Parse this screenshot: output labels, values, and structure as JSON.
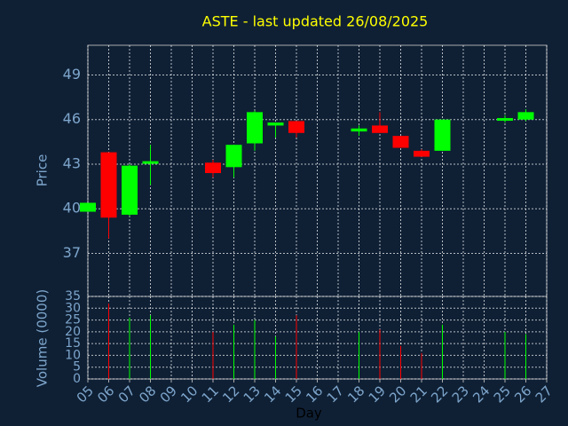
{
  "chart_data": [
    {
      "type": "candlestick",
      "title": "ASTE - last updated 26/08/2025",
      "ylabel": "Price",
      "x": [
        5,
        6,
        7,
        8,
        11,
        12,
        13,
        14,
        15,
        18,
        19,
        20,
        21,
        22,
        25,
        26
      ],
      "open": [
        39.8,
        43.8,
        39.6,
        43.1,
        43.1,
        42.8,
        44.4,
        45.6,
        45.9,
        45.2,
        45.6,
        44.9,
        43.9,
        43.9,
        46.0,
        46.0
      ],
      "high": [
        40.4,
        43.8,
        43.0,
        44.3,
        43.3,
        44.3,
        46.6,
        45.8,
        45.9,
        45.6,
        46.5,
        44.9,
        44.0,
        46.0,
        46.3,
        46.7
      ],
      "low": [
        39.8,
        38.0,
        39.5,
        41.6,
        42.1,
        42.1,
        43.9,
        44.8,
        44.8,
        44.9,
        45.1,
        44.1,
        43.5,
        43.9,
        45.8,
        45.9
      ],
      "close": [
        40.4,
        39.4,
        42.9,
        43.2,
        42.4,
        44.3,
        46.5,
        45.8,
        45.1,
        45.4,
        45.1,
        44.1,
        43.5,
        46.0,
        46.1,
        46.5
      ],
      "up_color": "#00ff00",
      "down_color": "#ff0000",
      "ylim": [
        34.1,
        51
      ],
      "yticks": [
        37,
        40,
        43,
        46,
        49
      ],
      "xlim": [
        5,
        27
      ],
      "grid": true
    },
    {
      "type": "bar",
      "ylabel": "Volume (0000)",
      "xlabel": "Day",
      "x": [
        5,
        6,
        7,
        8,
        11,
        12,
        13,
        14,
        15,
        18,
        19,
        20,
        21,
        22,
        25,
        26
      ],
      "values": [
        0,
        32,
        26,
        27,
        20,
        23,
        25,
        18,
        27,
        20,
        21,
        14,
        11,
        23,
        20,
        19
      ],
      "ylim": [
        0,
        35
      ],
      "yticks": [
        0,
        5,
        10,
        15,
        20,
        25,
        30,
        35
      ],
      "xlim": [
        5,
        27
      ],
      "xticks": [
        {
          "value": 5,
          "label": "05"
        },
        {
          "value": 6,
          "label": "06"
        },
        {
          "value": 7,
          "label": "07"
        },
        {
          "value": 8,
          "label": "08"
        },
        {
          "value": 9,
          "label": "09"
        },
        10,
        11,
        12,
        13,
        14,
        15,
        16,
        17,
        18,
        19,
        20,
        21,
        22,
        23,
        24,
        25,
        26,
        27
      ],
      "grid": true
    }
  ]
}
